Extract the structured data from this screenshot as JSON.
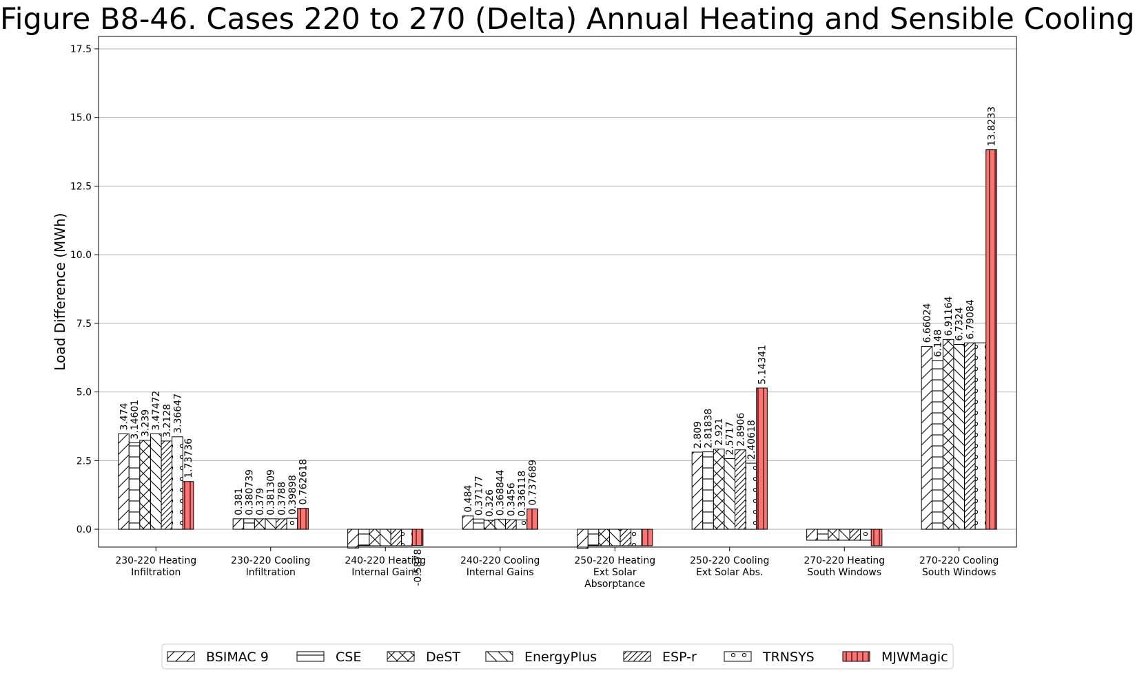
{
  "chart_data": {
    "type": "bar",
    "title": "Figure B8-46. Cases 220 to 270 (Delta) Annual Heating and Sensible Cooling",
    "xlabel": "",
    "ylabel": "Load Difference (MWh)",
    "ylim": [
      -0.65,
      17.95
    ],
    "yticks": [
      "0.0",
      "2.5",
      "5.0",
      "7.5",
      "10.0",
      "12.5",
      "15.0",
      "17.5"
    ],
    "grid": "horizontal",
    "legend_position": "bottom",
    "categories": [
      [
        "230-220 Heating",
        "Infiltration"
      ],
      [
        "230-220 Cooling",
        "Infiltration"
      ],
      [
        "240-220 Heating",
        "Internal Gains"
      ],
      [
        "240-220 Cooling",
        "Internal Gains"
      ],
      [
        "250-220 Heating",
        "Ext Solar",
        "Absorptance"
      ],
      [
        "250-220 Cooling",
        "Ext Solar Abs."
      ],
      [
        "270-220 Heating",
        "South Windows"
      ],
      [
        "270-220 Cooling",
        "South Windows"
      ]
    ],
    "series": [
      {
        "name": "BSIMAC 9",
        "hatch": "diag-forward",
        "color": "#ffffff",
        "values": [
          3.474,
          0.381,
          -0.69,
          0.484,
          -0.7,
          2.809,
          -0.4,
          6.66024
        ],
        "labels": [
          "3.474",
          "0.381",
          null,
          "0.484",
          null,
          "2.809",
          null,
          "6.66024"
        ]
      },
      {
        "name": "CSE",
        "hatch": "horizontal",
        "color": "#ffffff",
        "values": [
          3.14601,
          0.380739,
          -0.6,
          0.37177,
          -0.6,
          2.81838,
          -0.4,
          6.148
        ],
        "labels": [
          "3.14601",
          "0.380739",
          null,
          "0.37177",
          null,
          "2.81838",
          null,
          "6.148"
        ]
      },
      {
        "name": "DeST",
        "hatch": "cross",
        "color": "#ffffff",
        "values": [
          3.239,
          0.379,
          -0.6,
          0.326,
          -0.6,
          2.921,
          -0.4,
          6.91164
        ],
        "labels": [
          "3.239",
          "0.379",
          null,
          "0.326",
          null,
          "2.921",
          null,
          "6.91164"
        ]
      },
      {
        "name": "EnergyPlus",
        "hatch": "diag-back",
        "color": "#ffffff",
        "values": [
          3.47472,
          0.381309,
          -0.6,
          0.368844,
          -0.6,
          2.5717,
          -0.4,
          6.7324
        ],
        "labels": [
          "3.47472",
          "0.381309",
          null,
          "0.368844",
          null,
          "2.5717",
          null,
          "6.7324"
        ]
      },
      {
        "name": "ESP-r",
        "hatch": "diag-forward-dense",
        "color": "#ffffff",
        "values": [
          3.2128,
          0.3788,
          -0.6,
          0.3456,
          -0.6,
          2.8906,
          -0.4,
          6.79084
        ],
        "labels": [
          "3.2128",
          "0.3788",
          null,
          "0.3456",
          null,
          "2.8906",
          null,
          "6.79084"
        ]
      },
      {
        "name": "TRNSYS",
        "hatch": "circles",
        "color": "#ffffff",
        "values": [
          3.36647,
          0.39898,
          -0.6,
          0.336118,
          -0.6,
          2.40618,
          -0.4,
          6.79084
        ],
        "labels": [
          "3.36647",
          "0.39898",
          null,
          "0.336118",
          null,
          "2.40618",
          null,
          null
        ]
      },
      {
        "name": "MJWMagic",
        "hatch": "vertical",
        "color": "#ff7373",
        "values": [
          1.73736,
          0.762618,
          -0.5878,
          0.737689,
          -0.6,
          5.14341,
          -0.6,
          13.8233
        ],
        "labels": [
          "1.73736",
          "0.762618",
          "-0.5878",
          "0.737689",
          null,
          "5.14341",
          null,
          "13.8233"
        ]
      }
    ]
  }
}
